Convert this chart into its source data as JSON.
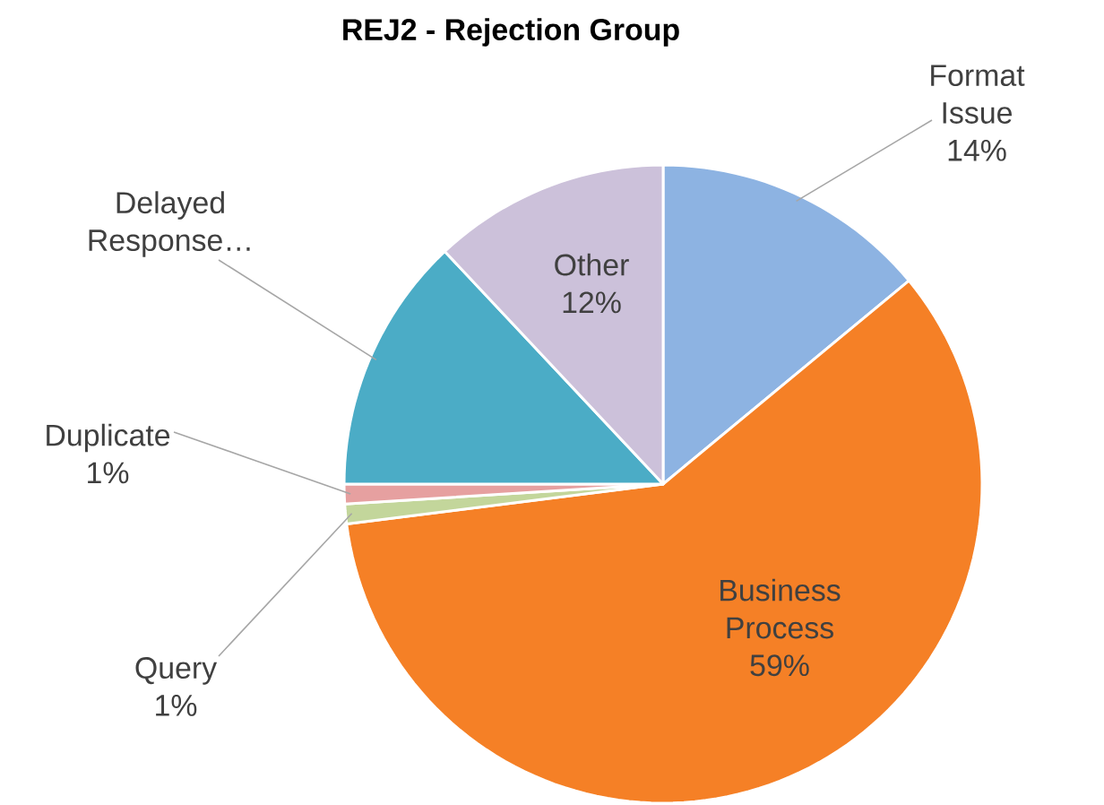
{
  "chart_data": {
    "type": "pie",
    "title": "REJ2 - Rejection Group",
    "categories": [
      "Format Issue",
      "Business Process",
      "Query",
      "Duplicate",
      "Delayed Response…",
      "Other"
    ],
    "values": [
      14,
      59,
      1,
      1,
      13,
      12
    ],
    "value_labels": [
      "14%",
      "59%",
      "1%",
      "1%",
      null,
      "12%"
    ],
    "colors": [
      "#8db3e2",
      "#f58026",
      "#c3d69b",
      "#e6a0a0",
      "#4bacc6",
      "#ccc1da"
    ]
  }
}
